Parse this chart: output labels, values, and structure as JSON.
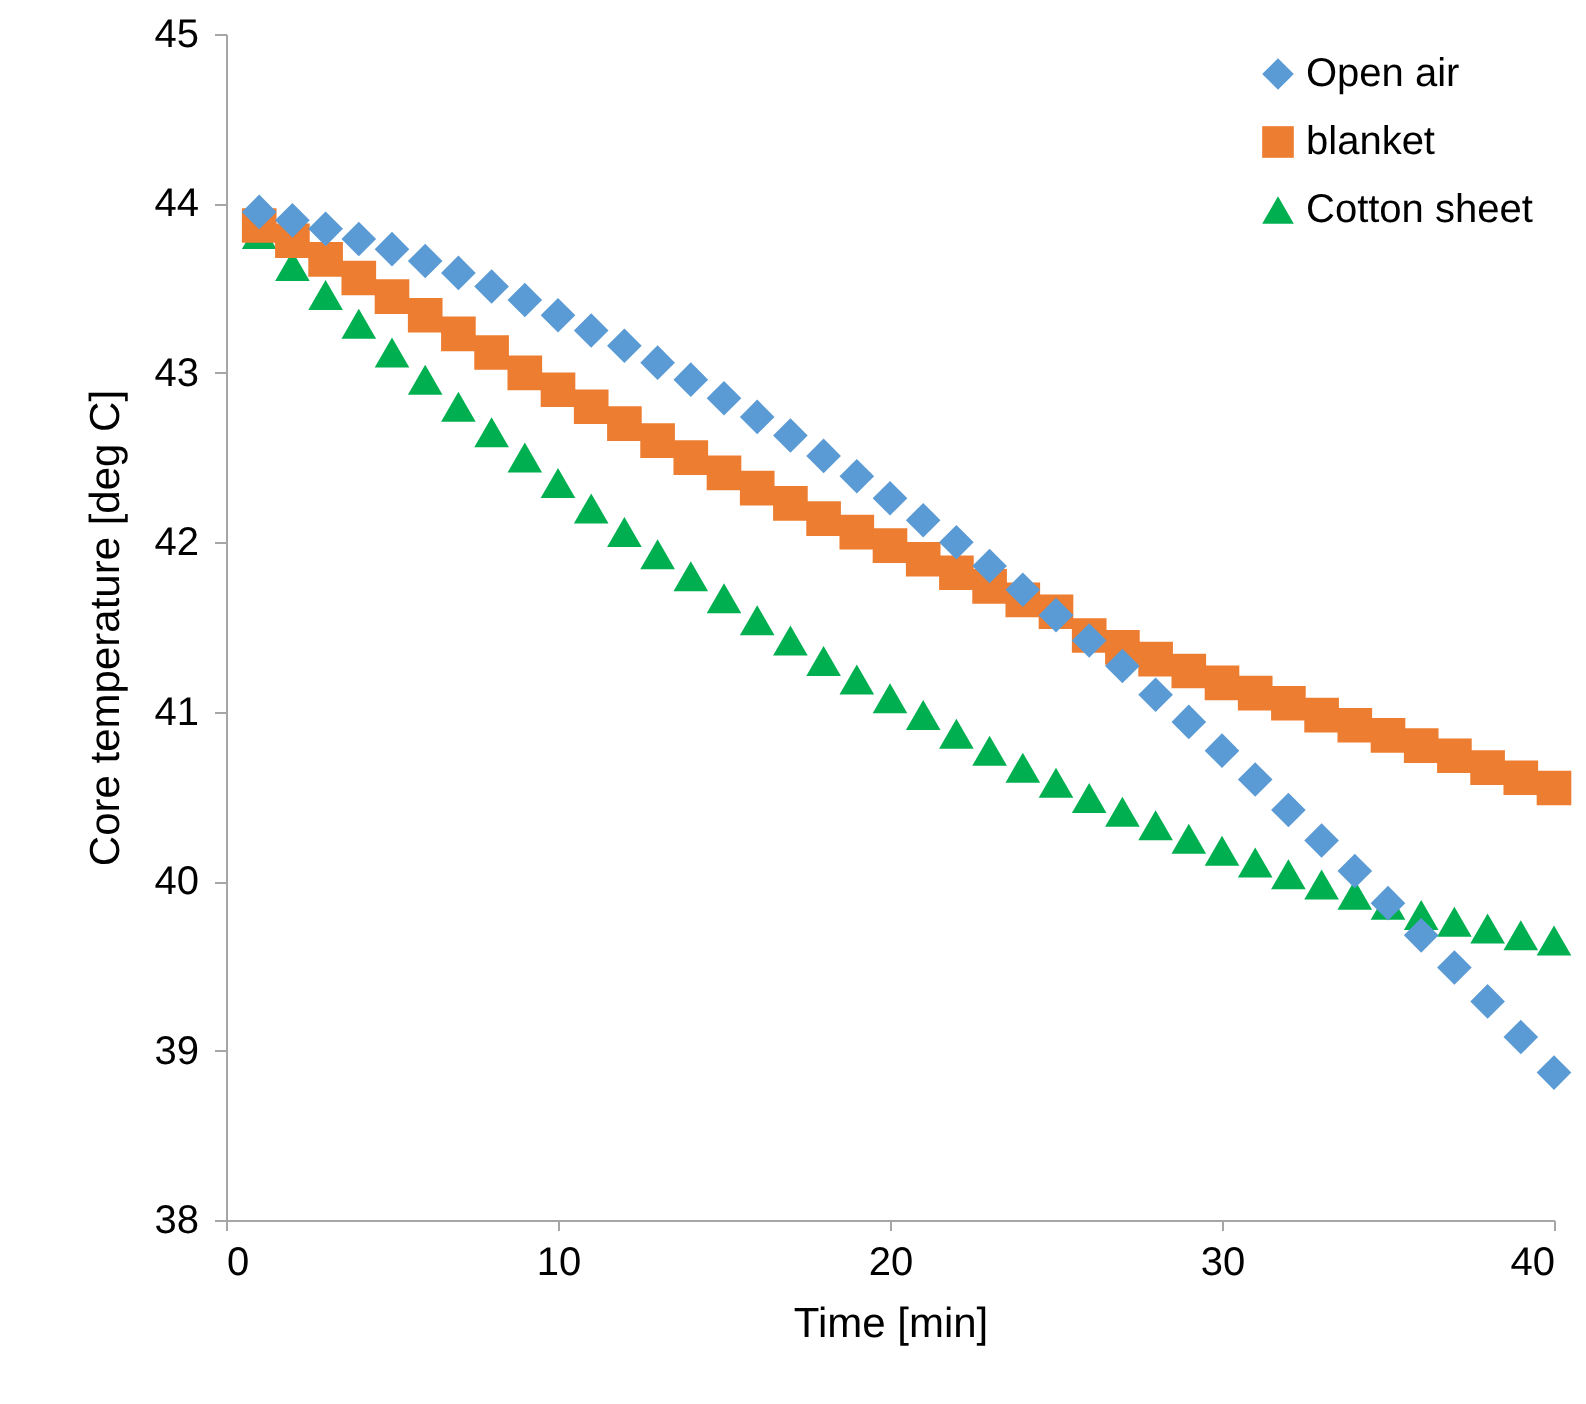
{
  "chart_data": {
    "type": "scatter",
    "xlabel": "Time [min]",
    "ylabel": "Core temperature [deg C]",
    "x": [
      1,
      2,
      3,
      4,
      5,
      6,
      7,
      8,
      9,
      10,
      11,
      12,
      13,
      14,
      15,
      16,
      17,
      18,
      19,
      20,
      21,
      22,
      23,
      24,
      25,
      26,
      27,
      28,
      29,
      30,
      31,
      32,
      33,
      34,
      35,
      36,
      37,
      38,
      39,
      40
    ],
    "series": [
      {
        "name": "Open air",
        "color": "#5b9bd5",
        "marker": "diamond",
        "values": [
          43.95,
          43.9,
          43.85,
          43.79,
          43.73,
          43.66,
          43.59,
          43.51,
          43.43,
          43.34,
          43.25,
          43.16,
          43.06,
          42.96,
          42.85,
          42.74,
          42.63,
          42.51,
          42.39,
          42.26,
          42.13,
          42.0,
          41.86,
          41.72,
          41.57,
          41.42,
          41.27,
          41.1,
          40.94,
          40.77,
          40.6,
          40.42,
          40.24,
          40.06,
          39.87,
          39.68,
          39.49,
          39.29,
          39.08,
          38.87
        ]
      },
      {
        "name": "blanket",
        "color": "#ed7d31",
        "marker": "square",
        "values": [
          43.87,
          43.78,
          43.67,
          43.56,
          43.45,
          43.34,
          43.23,
          43.12,
          43.0,
          42.9,
          42.8,
          42.7,
          42.6,
          42.5,
          42.41,
          42.32,
          42.23,
          42.14,
          42.06,
          41.98,
          41.9,
          41.82,
          41.74,
          41.66,
          41.59,
          41.45,
          41.38,
          41.31,
          41.24,
          41.17,
          41.11,
          41.05,
          40.98,
          40.92,
          40.86,
          40.8,
          40.74,
          40.67,
          40.61,
          40.55
        ]
      },
      {
        "name": "Cotton sheet",
        "color": "#00b050",
        "marker": "triangle",
        "values": [
          43.82,
          43.63,
          43.46,
          43.29,
          43.12,
          42.96,
          42.8,
          42.65,
          42.5,
          42.35,
          42.2,
          42.06,
          41.93,
          41.8,
          41.67,
          41.54,
          41.42,
          41.3,
          41.19,
          41.08,
          40.98,
          40.87,
          40.77,
          40.67,
          40.58,
          40.49,
          40.41,
          40.33,
          40.25,
          40.18,
          40.11,
          40.04,
          39.98,
          39.92,
          39.86,
          39.8,
          39.76,
          39.72,
          39.68,
          39.65
        ]
      }
    ],
    "xlim": [
      0,
      40
    ],
    "xticks": [
      0,
      10,
      20,
      30,
      40
    ],
    "ylim": [
      38,
      45
    ],
    "yticks": [
      38,
      39,
      40,
      41,
      42,
      43,
      44,
      45
    ],
    "grid": false,
    "legend": "top right"
  }
}
